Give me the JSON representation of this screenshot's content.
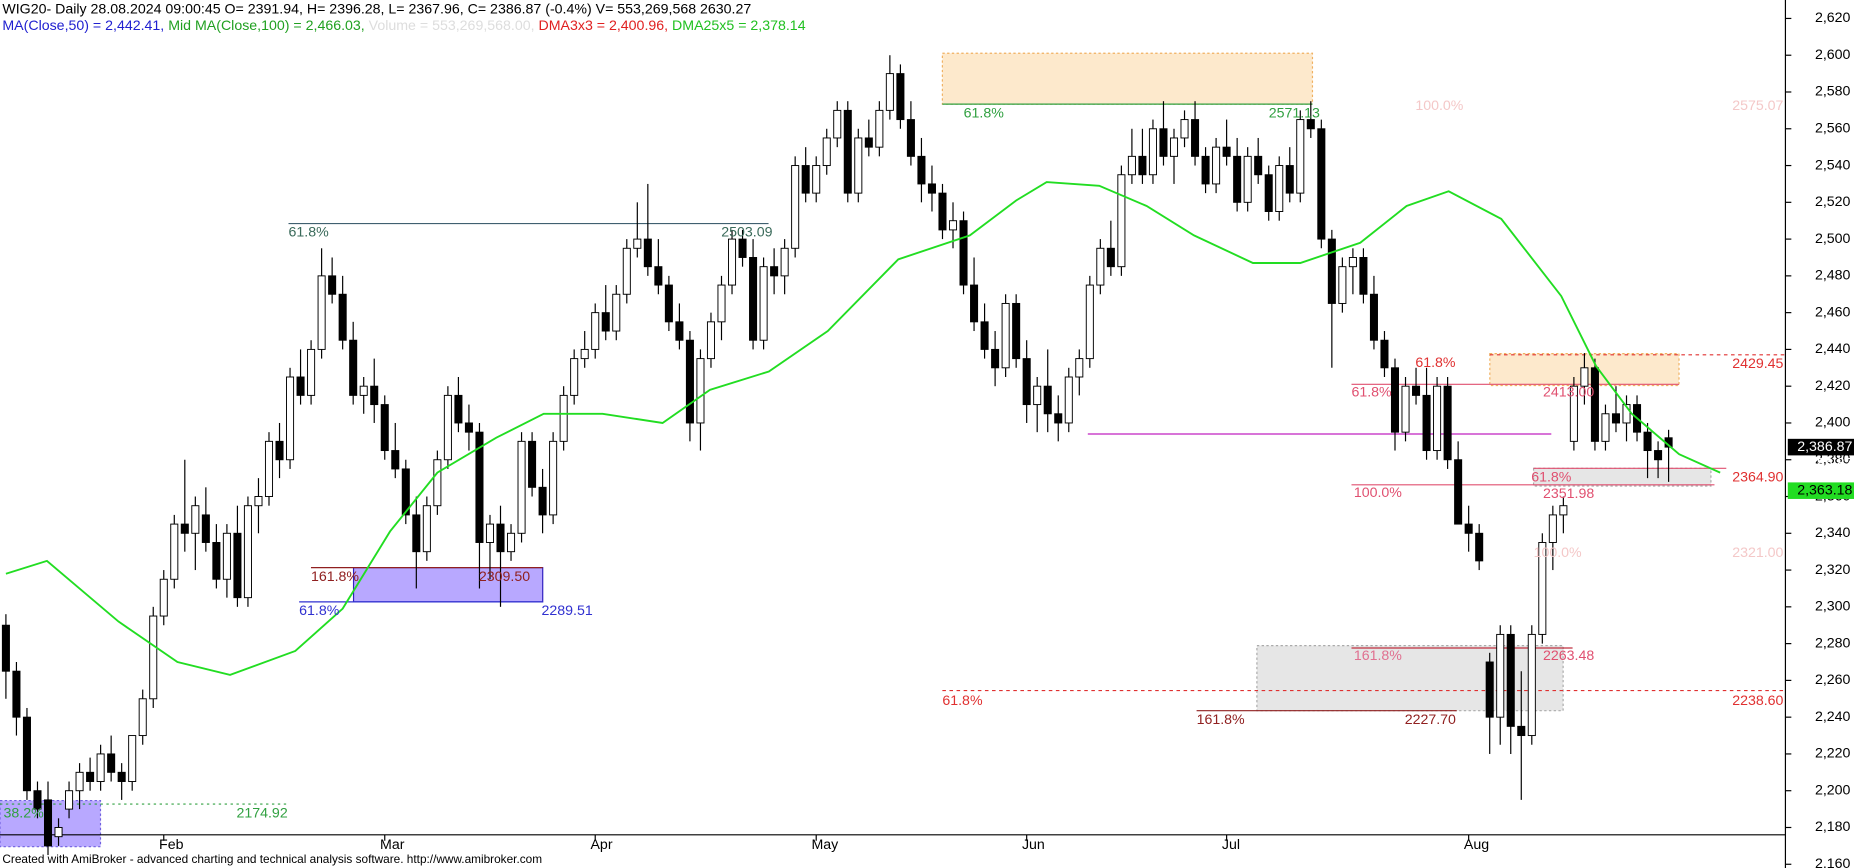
{
  "header": {
    "title": "WIG20- Daily 28.08.2024 09:00:45 O= 2391.94, H= 2396.28, L= 2367.96, C= 2386.87 (-0.4%) V= 553,269,568  2630.27",
    "legend": [
      "MA(Close,50) = 2,442.41,",
      "Mid MA(Close,100) = 2,466.03,",
      "Volume = 553,269,568.00,",
      "DMA3x3 = 2,400.96,",
      "DMA25x5 = 2,378.14"
    ]
  },
  "footer": "Created with AmiBroker - advanced charting and technical analysis software. http://www.amibroker.com",
  "chart_data": {
    "type": "candlestick",
    "categories": [
      null,
      null,
      null,
      null,
      null,
      null,
      null,
      null,
      null,
      null,
      null,
      null,
      null,
      null,
      null,
      "Feb",
      null,
      null,
      null,
      null,
      null,
      null,
      null,
      null,
      null,
      null,
      null,
      null,
      null,
      null,
      null,
      null,
      null,
      null,
      null,
      null,
      "Mar",
      null,
      null,
      null,
      null,
      null,
      null,
      null,
      null,
      null,
      null,
      null,
      null,
      null,
      null,
      null,
      null,
      null,
      null,
      null,
      "Apr",
      null,
      null,
      null,
      null,
      null,
      null,
      null,
      null,
      null,
      null,
      null,
      null,
      null,
      null,
      null,
      null,
      null,
      null,
      null,
      null,
      "May",
      null,
      null,
      null,
      null,
      null,
      null,
      null,
      null,
      null,
      null,
      null,
      null,
      null,
      null,
      null,
      null,
      null,
      null,
      null,
      "Jun",
      null,
      null,
      null,
      null,
      null,
      null,
      null,
      null,
      null,
      null,
      null,
      null,
      null,
      null,
      null,
      null,
      null,
      null,
      "Jul",
      null,
      null,
      null,
      null,
      null,
      null,
      null,
      null,
      null,
      null,
      null,
      null,
      null,
      null,
      null,
      null,
      null,
      null,
      null,
      null,
      null,
      null,
      "Aug",
      null,
      null,
      null,
      null,
      null,
      null,
      null,
      null,
      null,
      null,
      null,
      null,
      null,
      null,
      null,
      null,
      null,
      null,
      null
    ],
    "ohlc": [
      [
        2290,
        2296,
        2250,
        2265
      ],
      [
        2265,
        2270,
        2230,
        2240
      ],
      [
        2240,
        2245,
        2195,
        2200
      ],
      [
        2200,
        2205,
        2185,
        2190
      ],
      [
        2195,
        2205,
        2165,
        2170
      ],
      [
        2175,
        2185,
        2170,
        2180
      ],
      [
        2190,
        2205,
        2185,
        2200
      ],
      [
        2200,
        2215,
        2190,
        2210
      ],
      [
        2210,
        2218,
        2200,
        2205
      ],
      [
        2205,
        2225,
        2200,
        2220
      ],
      [
        2220,
        2230,
        2205,
        2210
      ],
      [
        2210,
        2215,
        2195,
        2205
      ],
      [
        2205,
        2230,
        2200,
        2230
      ],
      [
        2230,
        2255,
        2225,
        2250
      ],
      [
        2250,
        2300,
        2245,
        2295
      ],
      [
        2295,
        2320,
        2290,
        2315
      ],
      [
        2315,
        2350,
        2310,
        2345
      ],
      [
        2345,
        2380,
        2330,
        2340
      ],
      [
        2340,
        2360,
        2320,
        2355
      ],
      [
        2350,
        2365,
        2330,
        2335
      ],
      [
        2335,
        2345,
        2310,
        2315
      ],
      [
        2315,
        2345,
        2305,
        2340
      ],
      [
        2340,
        2355,
        2300,
        2305
      ],
      [
        2305,
        2360,
        2300,
        2355
      ],
      [
        2355,
        2370,
        2340,
        2360
      ],
      [
        2360,
        2395,
        2355,
        2390
      ],
      [
        2390,
        2400,
        2370,
        2380
      ],
      [
        2380,
        2430,
        2375,
        2425
      ],
      [
        2425,
        2440,
        2410,
        2415
      ],
      [
        2415,
        2445,
        2410,
        2440
      ],
      [
        2440,
        2495,
        2435,
        2480
      ],
      [
        2480,
        2490,
        2465,
        2470
      ],
      [
        2470,
        2480,
        2440,
        2445
      ],
      [
        2445,
        2455,
        2410,
        2415
      ],
      [
        2415,
        2425,
        2405,
        2420
      ],
      [
        2420,
        2435,
        2400,
        2410
      ],
      [
        2410,
        2415,
        2380,
        2385
      ],
      [
        2385,
        2400,
        2370,
        2375
      ],
      [
        2375,
        2380,
        2345,
        2350
      ],
      [
        2350,
        2360,
        2310,
        2330
      ],
      [
        2330,
        2360,
        2325,
        2355
      ],
      [
        2355,
        2385,
        2350,
        2380
      ],
      [
        2380,
        2420,
        2375,
        2415
      ],
      [
        2415,
        2425,
        2395,
        2400
      ],
      [
        2400,
        2410,
        2385,
        2395
      ],
      [
        2395,
        2400,
        2310,
        2335
      ],
      [
        2335,
        2350,
        2315,
        2345
      ],
      [
        2345,
        2355,
        2300,
        2330
      ],
      [
        2330,
        2345,
        2325,
        2340
      ],
      [
        2340,
        2395,
        2335,
        2390
      ],
      [
        2390,
        2395,
        2360,
        2365
      ],
      [
        2365,
        2375,
        2340,
        2350
      ],
      [
        2350,
        2395,
        2345,
        2390
      ],
      [
        2390,
        2420,
        2385,
        2415
      ],
      [
        2415,
        2440,
        2410,
        2435
      ],
      [
        2435,
        2450,
        2430,
        2440
      ],
      [
        2440,
        2465,
        2435,
        2460
      ],
      [
        2460,
        2475,
        2445,
        2450
      ],
      [
        2450,
        2475,
        2445,
        2470
      ],
      [
        2470,
        2500,
        2465,
        2495
      ],
      [
        2495,
        2520,
        2490,
        2500
      ],
      [
        2500,
        2530,
        2480,
        2485
      ],
      [
        2485,
        2500,
        2470,
        2475
      ],
      [
        2475,
        2480,
        2450,
        2455
      ],
      [
        2455,
        2465,
        2440,
        2445
      ],
      [
        2445,
        2450,
        2390,
        2400
      ],
      [
        2400,
        2440,
        2385,
        2435
      ],
      [
        2435,
        2460,
        2430,
        2455
      ],
      [
        2455,
        2480,
        2445,
        2475
      ],
      [
        2475,
        2505,
        2470,
        2500
      ],
      [
        2500,
        2505,
        2485,
        2490
      ],
      [
        2490,
        2500,
        2440,
        2445
      ],
      [
        2445,
        2490,
        2440,
        2485
      ],
      [
        2485,
        2495,
        2470,
        2480
      ],
      [
        2480,
        2500,
        2470,
        2495
      ],
      [
        2495,
        2545,
        2490,
        2540
      ],
      [
        2540,
        2550,
        2520,
        2525
      ],
      [
        2525,
        2545,
        2520,
        2540
      ],
      [
        2540,
        2560,
        2535,
        2555
      ],
      [
        2555,
        2575,
        2550,
        2570
      ],
      [
        2570,
        2575,
        2520,
        2525
      ],
      [
        2525,
        2560,
        2520,
        2555
      ],
      [
        2555,
        2565,
        2545,
        2550
      ],
      [
        2550,
        2575,
        2545,
        2570
      ],
      [
        2570,
        2600,
        2565,
        2590
      ],
      [
        2590,
        2595,
        2560,
        2565
      ],
      [
        2565,
        2575,
        2540,
        2545
      ],
      [
        2545,
        2555,
        2520,
        2530
      ],
      [
        2530,
        2540,
        2515,
        2525
      ],
      [
        2525,
        2530,
        2500,
        2505
      ],
      [
        2505,
        2520,
        2495,
        2510
      ],
      [
        2510,
        2515,
        2470,
        2475
      ],
      [
        2475,
        2490,
        2450,
        2455
      ],
      [
        2455,
        2465,
        2435,
        2440
      ],
      [
        2440,
        2450,
        2420,
        2430
      ],
      [
        2430,
        2470,
        2425,
        2465
      ],
      [
        2465,
        2470,
        2430,
        2435
      ],
      [
        2435,
        2445,
        2400,
        2410
      ],
      [
        2410,
        2425,
        2395,
        2420
      ],
      [
        2420,
        2440,
        2395,
        2405
      ],
      [
        2405,
        2415,
        2390,
        2400
      ],
      [
        2400,
        2430,
        2395,
        2425
      ],
      [
        2425,
        2440,
        2415,
        2435
      ],
      [
        2435,
        2480,
        2430,
        2475
      ],
      [
        2475,
        2500,
        2470,
        2495
      ],
      [
        2495,
        2510,
        2480,
        2485
      ],
      [
        2485,
        2540,
        2480,
        2535
      ],
      [
        2535,
        2560,
        2530,
        2545
      ],
      [
        2545,
        2560,
        2530,
        2535
      ],
      [
        2535,
        2565,
        2530,
        2560
      ],
      [
        2560,
        2575,
        2540,
        2545
      ],
      [
        2545,
        2560,
        2530,
        2555
      ],
      [
        2555,
        2570,
        2550,
        2565
      ],
      [
        2565,
        2575,
        2540,
        2545
      ],
      [
        2545,
        2550,
        2525,
        2530
      ],
      [
        2530,
        2555,
        2525,
        2550
      ],
      [
        2550,
        2565,
        2540,
        2545
      ],
      [
        2545,
        2555,
        2515,
        2520
      ],
      [
        2520,
        2550,
        2515,
        2545
      ],
      [
        2545,
        2555,
        2530,
        2535
      ],
      [
        2535,
        2540,
        2510,
        2515
      ],
      [
        2515,
        2545,
        2510,
        2540
      ],
      [
        2540,
        2550,
        2520,
        2525
      ],
      [
        2525,
        2570,
        2520,
        2565
      ],
      [
        2565,
        2575,
        2555,
        2560
      ],
      [
        2560,
        2565,
        2495,
        2500
      ],
      [
        2500,
        2505,
        2430,
        2465
      ],
      [
        2465,
        2490,
        2460,
        2485
      ],
      [
        2485,
        2495,
        2470,
        2490
      ],
      [
        2490,
        2495,
        2465,
        2470
      ],
      [
        2470,
        2480,
        2440,
        2445
      ],
      [
        2445,
        2450,
        2425,
        2430
      ],
      [
        2430,
        2435,
        2385,
        2395
      ],
      [
        2395,
        2425,
        2390,
        2420
      ],
      [
        2420,
        2430,
        2410,
        2415
      ],
      [
        2415,
        2430,
        2380,
        2385
      ],
      [
        2385,
        2425,
        2380,
        2420
      ],
      [
        2420,
        2425,
        2375,
        2380
      ],
      [
        2380,
        2390,
        2345,
        2345
      ],
      [
        2345,
        2355,
        2330,
        2340
      ],
      [
        2340,
        2345,
        2320,
        2325
      ],
      [
        2270,
        2275,
        2220,
        2240
      ],
      [
        2240,
        2290,
        2225,
        2285
      ],
      [
        2285,
        2290,
        2220,
        2235
      ],
      [
        2235,
        2265,
        2195,
        2230
      ],
      [
        2230,
        2290,
        2225,
        2285
      ],
      [
        2285,
        2340,
        2280,
        2335
      ],
      [
        2335,
        2355,
        2320,
        2350
      ],
      [
        2350,
        2360,
        2340,
        2355
      ],
      [
        2390,
        2425,
        2385,
        2420
      ],
      [
        2420,
        2438,
        2410,
        2430
      ],
      [
        2430,
        2435,
        2385,
        2390
      ],
      [
        2390,
        2410,
        2385,
        2405
      ],
      [
        2405,
        2420,
        2395,
        2400
      ],
      [
        2400,
        2415,
        2390,
        2410
      ],
      [
        2410,
        2415,
        2390,
        2395
      ],
      [
        2395,
        2400,
        2370,
        2385
      ],
      [
        2385,
        2390,
        2370,
        2380
      ],
      [
        2391.94,
        2396.28,
        2367.96,
        2386.87
      ]
    ],
    "line": {
      "color": "#22dd22",
      "x": [
        0,
        3.9,
        10.7,
        16.3,
        21.3,
        27.5,
        32,
        36.5,
        41,
        46.6,
        51.1,
        56.7,
        62.4,
        66.9,
        72.5,
        78.1,
        84.8,
        91.6,
        96,
        98.9,
        103.9,
        108.4,
        112.9,
        118.5,
        123,
        128.7,
        133.1,
        137.1,
        142.1,
        147.8,
        151.1,
        154.5,
        159,
        162.9
      ],
      "values": [
        2318,
        2325,
        2292,
        2270,
        2263,
        2276,
        2299,
        2341,
        2373,
        2392,
        2405,
        2405,
        2400,
        2418,
        2428,
        2450,
        2489,
        2502,
        2521,
        2531,
        2529,
        2518,
        2502,
        2487,
        2487,
        2498,
        2518,
        2526,
        2511,
        2469,
        2431,
        2405,
        2383,
        2373
      ]
    },
    "ylim": [
      2158,
      2630
    ],
    "yticks": [
      {
        "value": 2160,
        "label": "2,160"
      },
      {
        "value": 2180,
        "label": "2,180"
      },
      {
        "value": 2200,
        "label": "2,200"
      },
      {
        "value": 2220,
        "label": "2,220"
      },
      {
        "value": 2240,
        "label": "2,240"
      },
      {
        "value": 2260,
        "label": "2,260"
      },
      {
        "value": 2280,
        "label": "2,280"
      },
      {
        "value": 2300,
        "label": "2,300"
      },
      {
        "value": 2320,
        "label": "2,320"
      },
      {
        "value": 2340,
        "label": "2,340"
      },
      {
        "value": 2360,
        "label": "2,360"
      },
      {
        "value": 2380,
        "label": "2,380"
      },
      {
        "value": 2400,
        "label": "2,400"
      },
      {
        "value": 2420,
        "label": "2,420"
      },
      {
        "value": 2440,
        "label": "2,440"
      },
      {
        "value": 2460,
        "label": "2,460"
      },
      {
        "value": 2480,
        "label": "2,480"
      },
      {
        "value": 2500,
        "label": "2,500"
      },
      {
        "value": 2520,
        "label": "2,520"
      },
      {
        "value": 2540,
        "label": "2,540"
      },
      {
        "value": 2560,
        "label": "2,560"
      },
      {
        "value": 2580,
        "label": "2,580"
      },
      {
        "value": 2600,
        "label": "2,600"
      },
      {
        "value": 2620,
        "label": "2,620"
      }
    ],
    "price_labels": [
      {
        "value": 2386.87,
        "label": "2,386.87"
      },
      {
        "value": 2363.18,
        "label": "2,363.18"
      }
    ],
    "annotations": [
      "61.8%",
      "2503.09",
      "61.8%",
      "2571.13",
      "100.0%",
      "2575.07",
      "2429.45",
      "61.8%",
      "61.8%",
      "2413.00",
      "61.8%",
      "2364.90",
      "100.0%",
      "2351.98",
      "100.0%",
      "2321.00",
      "161.8%",
      "2263.48",
      "61.8%",
      "2238.60",
      "161.8%",
      "2227.70",
      "161.8%",
      "2309.50",
      "61.8%",
      "2289.51",
      "38.2%",
      "2174.92"
    ]
  }
}
